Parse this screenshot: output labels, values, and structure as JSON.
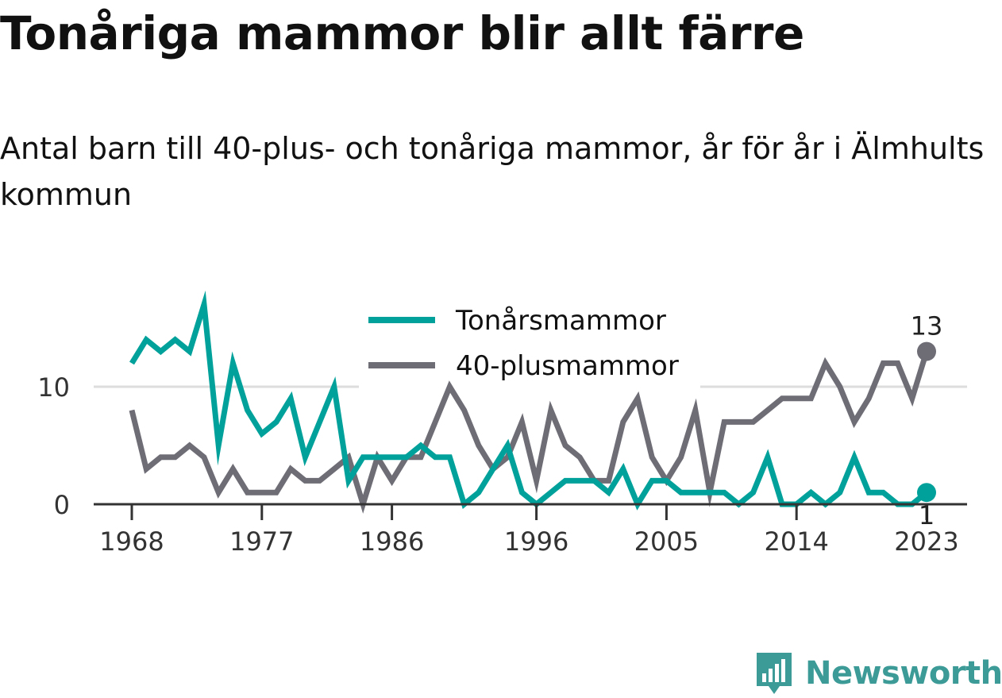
{
  "page": {
    "title": "Tonåriga mammor blir allt färre",
    "subtitle": "Antal barn till 40-plus- och tonåriga mammor, år för år i Älmhults kommun"
  },
  "colors": {
    "teen": "#00A19A",
    "forty": "#6E6D76",
    "axis": "#333333",
    "grid": "#DDDDDD",
    "brand": "#3D9B97"
  },
  "brand": {
    "name": "Newsworthy",
    "icon": "newsworthy-logo-icon"
  },
  "chart_data": {
    "type": "line",
    "title": "Tonåriga mammor blir allt färre",
    "subtitle": "Antal barn till 40-plus- och tonåriga mammor, år för år i Älmhults kommun",
    "xlabel": "",
    "ylabel": "",
    "xlim": [
      1966,
      2027
    ],
    "ylim": [
      0,
      18
    ],
    "x_ticks": [
      "1968",
      "1977",
      "1986",
      "1996",
      "2005",
      "2014",
      "2023"
    ],
    "y_ticks": [
      "0",
      "10"
    ],
    "grid": true,
    "legend": {
      "placement": "top-center"
    },
    "x": [
      1968,
      1969,
      1970,
      1971,
      1972,
      1973,
      1974,
      1975,
      1976,
      1977,
      1978,
      1979,
      1980,
      1981,
      1982,
      1983,
      1984,
      1985,
      1986,
      1987,
      1988,
      1989,
      1990,
      1991,
      1992,
      1993,
      1994,
      1995,
      1996,
      1997,
      1998,
      1999,
      2000,
      2001,
      2002,
      2003,
      2004,
      2005,
      2006,
      2007,
      2008,
      2009,
      2010,
      2011,
      2012,
      2013,
      2014,
      2015,
      2016,
      2017,
      2018,
      2019,
      2020,
      2021,
      2022,
      2023
    ],
    "series": [
      {
        "name": "Tonårsmammor",
        "color": "#00A19A",
        "end_label": "1",
        "values": [
          12,
          14,
          13,
          14,
          13,
          17,
          5,
          12,
          8,
          6,
          7,
          9,
          4,
          7,
          10,
          2,
          4,
          4,
          4,
          4,
          5,
          4,
          4,
          0,
          1,
          3,
          5,
          1,
          0,
          1,
          2,
          2,
          2,
          1,
          3,
          0,
          2,
          2,
          1,
          1,
          1,
          1,
          0,
          1,
          4,
          0,
          0,
          1,
          0,
          1,
          4,
          1,
          1,
          0,
          0,
          1
        ]
      },
      {
        "name": "40-plusmammor",
        "color": "#6E6D76",
        "end_label": "13",
        "values": [
          8,
          3,
          4,
          4,
          5,
          4,
          1,
          3,
          1,
          1,
          1,
          3,
          2,
          2,
          3,
          4,
          0,
          4,
          2,
          4,
          4,
          7,
          10,
          8,
          5,
          3,
          4,
          7,
          2,
          8,
          5,
          4,
          2,
          2,
          7,
          9,
          4,
          2,
          4,
          8,
          1,
          7,
          7,
          7,
          8,
          9,
          9,
          9,
          12,
          10,
          7,
          9,
          12,
          12,
          9,
          13
        ]
      }
    ]
  }
}
